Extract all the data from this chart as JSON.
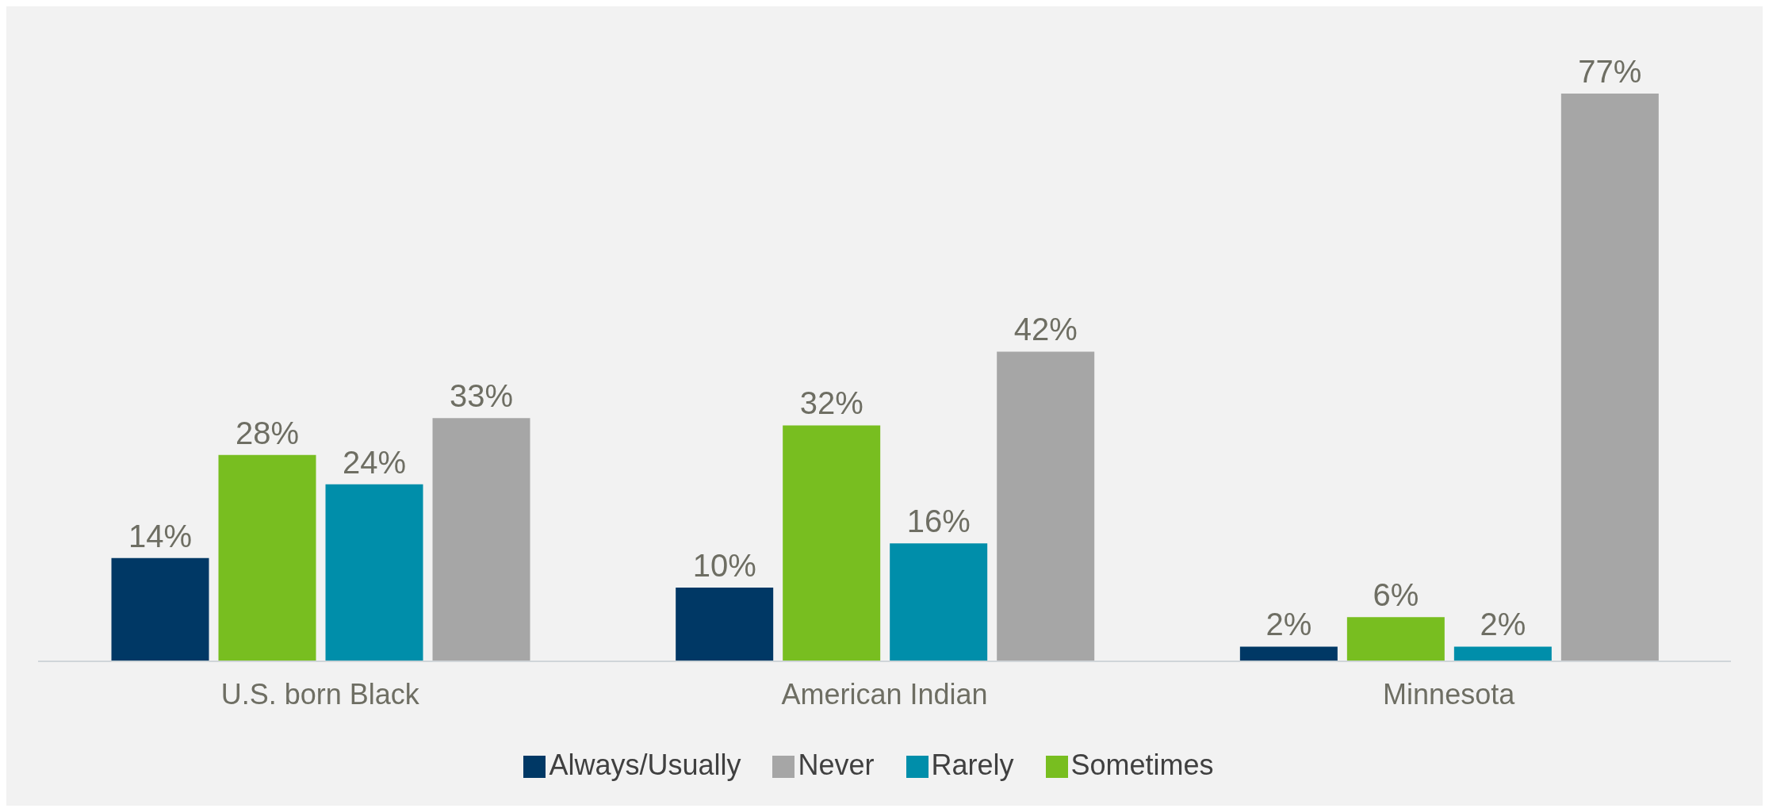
{
  "chart_data": {
    "type": "bar",
    "categories": [
      "U.S. born Black",
      "American Indian",
      "Minnesota"
    ],
    "series": [
      {
        "name": "Always/Usually",
        "color": "#003865",
        "values": [
          14,
          10,
          2
        ],
        "value_labels": [
          "14%",
          "10%",
          "2%"
        ]
      },
      {
        "name": "Sometimes",
        "color": "#78be20",
        "values": [
          28,
          32,
          6
        ],
        "value_labels": [
          "28%",
          "32%",
          "6%"
        ]
      },
      {
        "name": "Rarely",
        "color": "#008eaa",
        "values": [
          24,
          16,
          2
        ],
        "value_labels": [
          "24%",
          "16%",
          "2%"
        ]
      },
      {
        "name": "Never",
        "color": "#a6a6a6",
        "values": [
          33,
          42,
          77
        ],
        "value_labels": [
          "33%",
          "42%",
          "77%"
        ]
      }
    ],
    "legend": "bottom",
    "grid": false
  }
}
